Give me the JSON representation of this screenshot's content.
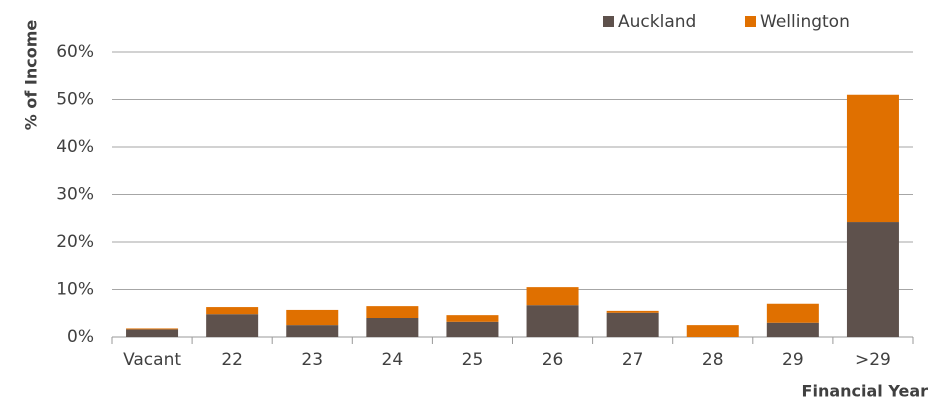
{
  "chart_data": {
    "type": "stacked_bar",
    "y_label": "% of Income",
    "x_label": "Financial Year",
    "categories": [
      "Vacant",
      "22",
      "23",
      "24",
      "25",
      "26",
      "27",
      "28",
      "29",
      ">29"
    ],
    "series": [
      {
        "name": "Auckland",
        "color": "#5e514c",
        "values": [
          1.6,
          4.8,
          2.5,
          4.0,
          3.2,
          6.7,
          5.1,
          0,
          3.0,
          24.2
        ]
      },
      {
        "name": "Wellington",
        "color": "#e07000",
        "values": [
          0.2,
          1.5,
          3.2,
          2.5,
          1.4,
          3.8,
          0.4,
          2.5,
          4.0,
          26.8
        ]
      }
    ],
    "ylim": [
      0,
      60
    ],
    "yticks": [
      {
        "value": 0,
        "label": "0%"
      },
      {
        "value": 10,
        "label": "10%"
      },
      {
        "value": 20,
        "label": "20%"
      },
      {
        "value": 30,
        "label": "30%"
      },
      {
        "value": 40,
        "label": "40%"
      },
      {
        "value": 50,
        "label": "50%"
      },
      {
        "value": 60,
        "label": "60%"
      }
    ],
    "grid": true,
    "legend": "top-right"
  }
}
